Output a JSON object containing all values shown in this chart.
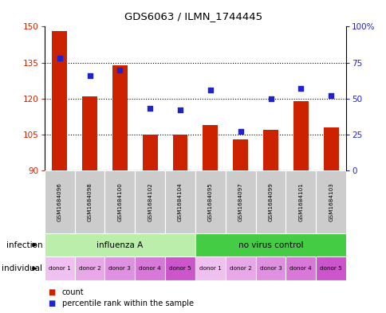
{
  "title": "GDS6063 / ILMN_1744445",
  "samples": [
    "GSM1684096",
    "GSM1684098",
    "GSM1684100",
    "GSM1684102",
    "GSM1684104",
    "GSM1684095",
    "GSM1684097",
    "GSM1684099",
    "GSM1684101",
    "GSM1684103"
  ],
  "counts": [
    148,
    121,
    134,
    105,
    105,
    109,
    103,
    107,
    119,
    108
  ],
  "percentiles": [
    78,
    66,
    70,
    43,
    42,
    56,
    27,
    50,
    57,
    52
  ],
  "bar_color": "#cc2200",
  "dot_color": "#2222cc",
  "ylim_left": [
    90,
    150
  ],
  "ylim_right": [
    0,
    100
  ],
  "yticks_left": [
    90,
    105,
    120,
    135,
    150
  ],
  "yticks_right": [
    0,
    25,
    50,
    75,
    100
  ],
  "ytick_right_labels": [
    "0",
    "25",
    "50",
    "75",
    "100%"
  ],
  "grid_lines": [
    105,
    120,
    135
  ],
  "infection_groups": [
    {
      "label": "influenza A",
      "start": 0,
      "end": 5,
      "color": "#bbeeaa"
    },
    {
      "label": "no virus control",
      "start": 5,
      "end": 10,
      "color": "#44cc44"
    }
  ],
  "individual_labels": [
    "donor 1",
    "donor 2",
    "donor 3",
    "donor 4",
    "donor 5",
    "donor 1",
    "donor 2",
    "donor 3",
    "donor 4",
    "donor 5"
  ],
  "individual_colors": [
    "#f0c0f0",
    "#e8a8e8",
    "#e090e0",
    "#d878d8",
    "#cc55cc",
    "#f0c0f0",
    "#e8a8e8",
    "#e090e0",
    "#d878d8",
    "#cc55cc"
  ],
  "sample_box_color": "#cccccc",
  "infection_label": "infection",
  "individual_label": "individual",
  "legend_count_label": "count",
  "legend_percentile_label": "percentile rank within the sample",
  "border_color": "#000000"
}
